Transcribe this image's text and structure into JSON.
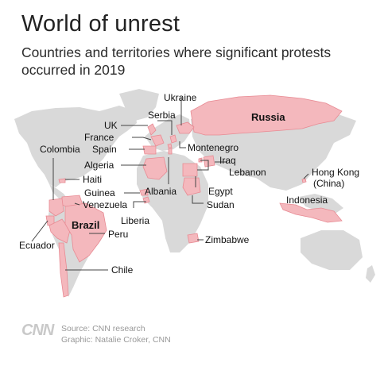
{
  "header": {
    "title": "World of unrest",
    "subtitle": "Countries and territories where significant protests occurred in 2019"
  },
  "colors": {
    "land": "#d9d9d9",
    "protest_fill": "#f4b8bd",
    "protest_outline": "#e88a93",
    "text": "#222222",
    "footer_text": "#999999"
  },
  "labels": {
    "ukraine": "Ukraine",
    "russia": "Russia",
    "serbia": "Serbia",
    "uk": "UK",
    "france": "France",
    "colombia": "Colombia",
    "spain": "Spain",
    "montenegro": "Montenegro",
    "iraq": "Iraq",
    "lebanon": "Lebanon",
    "algeria": "Algeria",
    "haiti": "Haiti",
    "guinea": "Guinea",
    "albania": "Albania",
    "egypt": "Egypt",
    "hong_kong_line1": "Hong Kong",
    "hong_kong_line2": "(China)",
    "venezuela": "Venezuela",
    "sudan": "Sudan",
    "indonesia": "Indonesia",
    "liberia": "Liberia",
    "brazil": "Brazil",
    "peru": "Peru",
    "ecuador": "Ecuador",
    "zimbabwe": "Zimbabwe",
    "chile": "Chile"
  },
  "footer": {
    "logo": "CNN",
    "source": "Source: CNN research",
    "graphic": "Graphic: Natalie Croker, CNN"
  }
}
